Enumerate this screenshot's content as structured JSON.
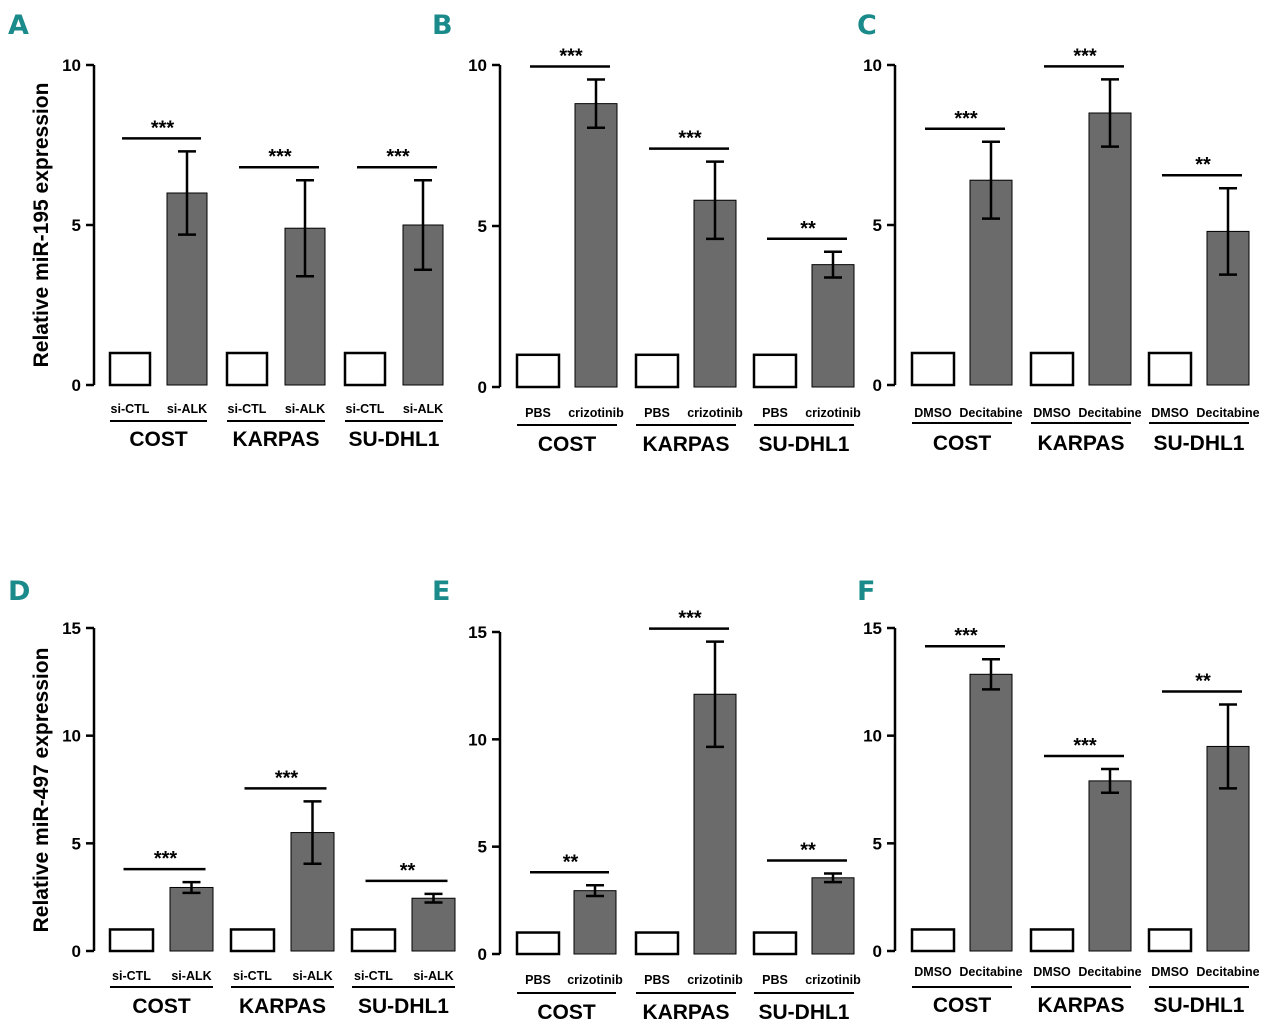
{
  "colors": {
    "accent": "#1a8a8a",
    "bar_fill": "#6b6b6b",
    "ink": "#000000",
    "control_fill": "#ffffff"
  },
  "chart_data": [
    {
      "panel": "A",
      "type": "bar",
      "ylabel": "Relative miR-195 expression",
      "ylim": [
        0,
        10
      ],
      "yticks": [
        "0",
        "5",
        "10"
      ],
      "categories": [
        "si-CTL",
        "si-ALK",
        "si-CTL",
        "si-ALK",
        "si-CTL",
        "si-ALK"
      ],
      "groups": [
        "COST",
        "KARPAS",
        "SU-DHL1"
      ],
      "values": [
        1.0,
        6.0,
        1.0,
        4.9,
        1.0,
        5.0
      ],
      "errors": [
        0,
        1.3,
        0,
        1.5,
        0,
        1.4
      ],
      "significance": [
        "***",
        "***",
        "***"
      ]
    },
    {
      "panel": "B",
      "type": "bar",
      "ylabel": "",
      "ylim": [
        0,
        10
      ],
      "yticks": [
        "0",
        "5",
        "10"
      ],
      "categories": [
        "PBS",
        "crizotinib",
        "PBS",
        "crizotinib",
        "PBS",
        "crizotinib"
      ],
      "groups": [
        "COST",
        "KARPAS",
        "SU-DHL1"
      ],
      "values": [
        1.0,
        8.8,
        1.0,
        5.8,
        1.0,
        3.8
      ],
      "errors": [
        0,
        0.75,
        0,
        1.2,
        0,
        0.4
      ],
      "significance": [
        "***",
        "***",
        "**"
      ]
    },
    {
      "panel": "C",
      "type": "bar",
      "ylabel": "",
      "ylim": [
        0,
        10
      ],
      "yticks": [
        "0",
        "5",
        "10"
      ],
      "categories": [
        "DMSO",
        "Decitabine",
        "DMSO",
        "Decitabine",
        "DMSO",
        "Decitabine"
      ],
      "groups": [
        "COST",
        "KARPAS",
        "SU-DHL1"
      ],
      "values": [
        1.0,
        6.4,
        1.0,
        8.5,
        1.0,
        4.8
      ],
      "errors": [
        0,
        1.2,
        0,
        1.05,
        0,
        1.35
      ],
      "significance": [
        "***",
        "***",
        "**"
      ]
    },
    {
      "panel": "D",
      "type": "bar",
      "ylabel": "Relative miR-497 expression",
      "ylim": [
        0,
        15
      ],
      "yticks": [
        "0",
        "5",
        "10",
        "15"
      ],
      "categories": [
        "si-CTL",
        "si-ALK",
        "si-CTL",
        "si-ALK",
        "si-CTL",
        "si-ALK"
      ],
      "groups": [
        "COST",
        "KARPAS",
        "SU-DHL1"
      ],
      "values": [
        1.0,
        2.95,
        1.0,
        5.5,
        1.0,
        2.45
      ],
      "errors": [
        0,
        0.25,
        0,
        1.45,
        0,
        0.2
      ],
      "significance": [
        "***",
        "***",
        "**"
      ]
    },
    {
      "panel": "E",
      "type": "bar",
      "ylabel": "",
      "ylim": [
        0,
        15
      ],
      "yticks": [
        "0",
        "5",
        "10",
        "15"
      ],
      "categories": [
        "PBS",
        "crizotinib",
        "PBS",
        "crizotinib",
        "PBS",
        "crizotinib"
      ],
      "groups": [
        "COST",
        "KARPAS",
        "SU-DHL1"
      ],
      "values": [
        1.0,
        2.95,
        1.0,
        12.1,
        1.0,
        3.55
      ],
      "errors": [
        0,
        0.25,
        0,
        2.45,
        0,
        0.2
      ],
      "significance": [
        "**",
        "***",
        "**"
      ]
    },
    {
      "panel": "F",
      "type": "bar",
      "ylabel": "",
      "ylim": [
        0,
        15
      ],
      "yticks": [
        "0",
        "5",
        "10",
        "15"
      ],
      "categories": [
        "DMSO",
        "Decitabine",
        "DMSO",
        "Decitabine",
        "DMSO",
        "Decitabine"
      ],
      "groups": [
        "COST",
        "KARPAS",
        "SU-DHL1"
      ],
      "values": [
        1.0,
        12.85,
        1.0,
        7.9,
        1.0,
        9.5
      ],
      "errors": [
        0,
        0.7,
        0,
        0.55,
        0,
        1.95
      ],
      "significance": [
        "***",
        "***",
        "**"
      ]
    }
  ]
}
